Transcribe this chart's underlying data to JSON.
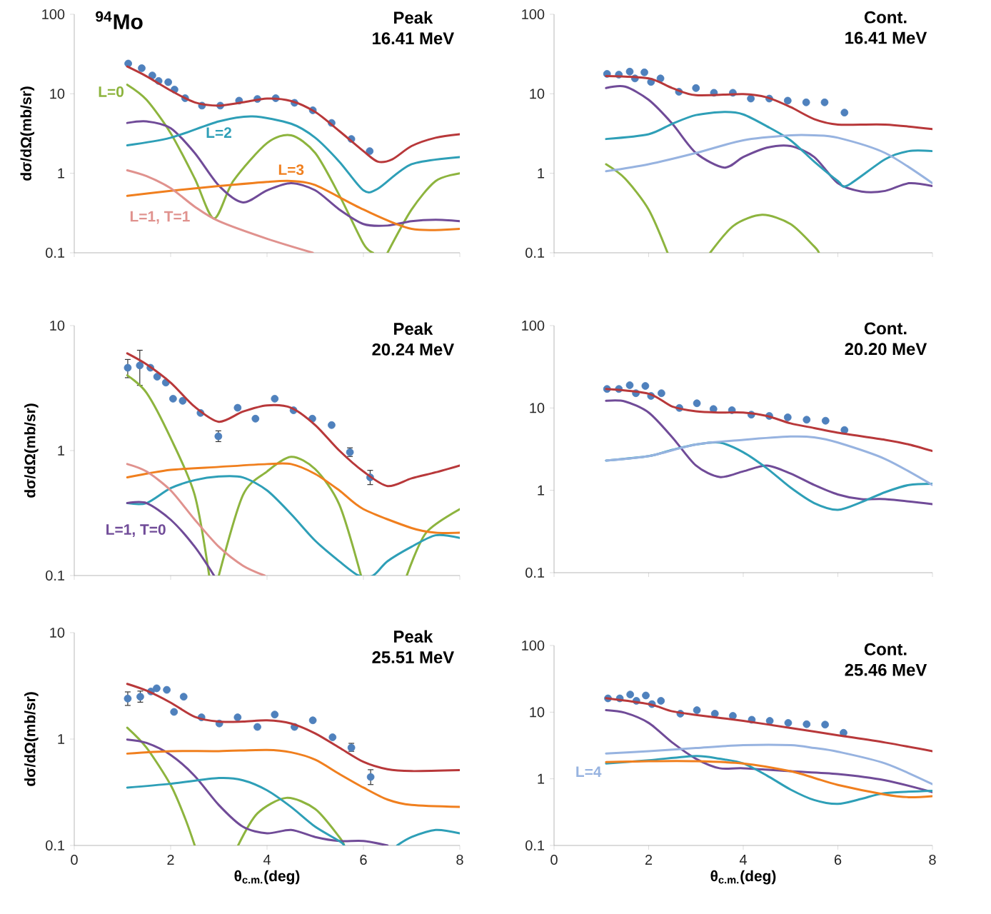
{
  "chart_data": [
    {
      "type": "line",
      "title": "Peak",
      "subtitle": "16.41 MeV",
      "ylabel": "dσ/dΩ(mb/sr)",
      "annotations": [
        "$^{94}$Mo"
      ],
      "log": true,
      "tick_labels": "y",
      "xlim": [
        0,
        8
      ],
      "xticks": [
        0,
        2,
        4,
        6,
        8
      ],
      "ylim": [
        0.1,
        100
      ],
      "yticks": [
        0.1,
        1,
        10,
        100
      ],
      "series": [
        {
          "type": "scatter",
          "marker": "circle",
          "color": "#4f81bd",
          "x": [
            1.12,
            1.4,
            1.62,
            1.75,
            1.95,
            2.08,
            2.3,
            2.65,
            3.03,
            3.42,
            3.8,
            4.18,
            4.57,
            4.95,
            5.34,
            5.75,
            6.13
          ],
          "values": [
            24,
            21,
            17,
            14.5,
            14,
            11.3,
            8.8,
            7.1,
            7.1,
            8.2,
            8.6,
            8.8,
            7.7,
            6.2,
            4.3,
            2.7,
            1.9
          ]
        },
        {
          "color": "#b8383a",
          "x": [
            1.1,
            1.5,
            2,
            2.5,
            3,
            3.5,
            4,
            4.5,
            5,
            5.5,
            6,
            6.3,
            6.6,
            7,
            7.5,
            8
          ],
          "values": [
            22,
            16.6,
            11,
            7.8,
            7.1,
            7.8,
            8.7,
            8.1,
            5.9,
            3.4,
            1.9,
            1.4,
            1.5,
            2.2,
            2.8,
            3.1
          ]
        },
        {
          "name": "L=0",
          "color": "#8db43e",
          "x": [
            1.1,
            1.5,
            2,
            2.5,
            2.9,
            3.3,
            4,
            4.5,
            5,
            5.5,
            6,
            6.2,
            6.35,
            6.5,
            7,
            7.5,
            8
          ],
          "values": [
            13,
            8.4,
            3.2,
            0.86,
            0.27,
            0.8,
            2.4,
            3.0,
            1.8,
            0.53,
            0.13,
            0.1,
            null,
            0.1,
            0.35,
            0.8,
            1.0
          ]
        },
        {
          "color": "#704b98",
          "x": [
            1.1,
            1.5,
            2,
            2.5,
            3,
            3.5,
            4,
            4.5,
            5,
            5.5,
            6,
            6.5,
            7,
            7.5,
            8
          ],
          "values": [
            4.3,
            4.5,
            3.7,
            1.8,
            0.7,
            0.43,
            0.61,
            0.75,
            0.61,
            0.35,
            0.23,
            0.22,
            0.25,
            0.26,
            0.25
          ]
        },
        {
          "name": "L=2",
          "color": "#2e9fb7",
          "x": [
            1.1,
            2,
            3,
            3.7,
            4.5,
            5,
            5.5,
            6,
            6.3,
            7,
            8
          ],
          "values": [
            2.25,
            2.8,
            4.5,
            5.2,
            4.2,
            2.8,
            1.4,
            0.61,
            0.64,
            1.3,
            1.6
          ]
        },
        {
          "name": "L=3",
          "color": "#f07f1e",
          "x": [
            1.1,
            2,
            3,
            4,
            4.5,
            5,
            6,
            7,
            8
          ],
          "values": [
            0.52,
            0.6,
            0.69,
            0.78,
            0.8,
            0.71,
            0.35,
            0.2,
            0.2
          ]
        },
        {
          "name": "L=1, T=1",
          "color": "#e0928e",
          "x": [
            1.1,
            1.5,
            2,
            2.5,
            3,
            4,
            4.95
          ],
          "values": [
            1.09,
            0.92,
            0.65,
            0.38,
            0.25,
            0.15,
            0.1
          ]
        }
      ]
    },
    {
      "type": "line",
      "title": "Cont.",
      "subtitle": "16.41 MeV",
      "log": true,
      "tick_labels": "y",
      "xlim": [
        0,
        8
      ],
      "xticks": [
        0,
        2,
        4,
        6,
        8
      ],
      "ylim": [
        0.1,
        100
      ],
      "yticks": [
        0.1,
        1,
        10,
        100
      ],
      "series": [
        {
          "type": "scatter",
          "marker": "circle",
          "color": "#4f81bd",
          "x": [
            1.12,
            1.37,
            1.6,
            1.71,
            1.91,
            2.05,
            2.25,
            2.64,
            3.0,
            3.38,
            3.78,
            4.16,
            4.55,
            4.94,
            5.33,
            5.72,
            6.14
          ],
          "values": [
            17.8,
            17.4,
            19,
            15.6,
            18.6,
            14.1,
            15.6,
            10.6,
            11.8,
            10.3,
            10.3,
            8.7,
            8.7,
            8.2,
            7.8,
            7.8,
            5.8
          ]
        },
        {
          "color": "#b8383a",
          "x": [
            1.1,
            2,
            2.5,
            3,
            4,
            4.5,
            5,
            5.5,
            6,
            7,
            8
          ],
          "values": [
            16.7,
            15.6,
            11.8,
            9.6,
            9.9,
            9.0,
            6.8,
            4.8,
            4.1,
            4.1,
            3.6
          ]
        },
        {
          "color": "#8db43e",
          "x": [
            1.1,
            1.5,
            2,
            2.4,
            2.85,
            3.3,
            3.8,
            4.4,
            5,
            5.5,
            5.6
          ],
          "values": [
            1.3,
            0.86,
            0.35,
            0.1,
            null,
            0.1,
            0.22,
            0.3,
            0.23,
            0.12,
            0.1
          ]
        },
        {
          "color": "#704b98",
          "x": [
            1.1,
            1.5,
            2,
            2.5,
            3,
            3.6,
            4,
            4.5,
            5,
            5.5,
            6,
            6.5,
            7,
            7.5,
            8
          ],
          "values": [
            11.8,
            12.3,
            8.4,
            4.2,
            1.8,
            1.18,
            1.6,
            2.1,
            2.2,
            1.6,
            0.75,
            0.59,
            0.6,
            0.75,
            0.69
          ]
        },
        {
          "color": "#2e9fb7",
          "x": [
            1.1,
            2,
            2.5,
            3,
            3.6,
            4,
            4.5,
            5,
            5.5,
            6,
            6.2,
            7,
            7.5,
            8
          ],
          "values": [
            2.7,
            3.1,
            4.2,
            5.4,
            5.9,
            5.5,
            3.9,
            2.6,
            1.4,
            0.8,
            0.7,
            1.5,
            1.9,
            1.9
          ]
        },
        {
          "color": "#97b3e0",
          "x": [
            1.1,
            2,
            3,
            4,
            5,
            5.5,
            6,
            7,
            8
          ],
          "values": [
            1.06,
            1.3,
            1.8,
            2.6,
            3.0,
            3.0,
            2.8,
            1.8,
            0.75
          ]
        }
      ]
    },
    {
      "type": "line",
      "title": "Peak",
      "subtitle": "20.24 MeV",
      "ylabel": "dσ/dΩ(mb/sr)",
      "log": true,
      "tick_labels": "y",
      "xlim": [
        0,
        8
      ],
      "xticks": [
        0,
        2,
        4,
        6,
        8
      ],
      "ylim": [
        0.1,
        10
      ],
      "yticks": [
        0.1,
        1,
        10
      ],
      "series": [
        {
          "type": "scatter",
          "marker": "circle",
          "color": "#4f81bd",
          "x": [
            1.11,
            1.36,
            1.58,
            1.72,
            1.9,
            2.05,
            2.25,
            2.62,
            2.99,
            3.39,
            3.76,
            4.16,
            4.55,
            4.94,
            5.34,
            5.72,
            6.14
          ],
          "values": [
            4.6,
            4.8,
            4.6,
            3.9,
            3.5,
            2.6,
            2.5,
            2.0,
            1.3,
            2.2,
            1.8,
            2.6,
            2.1,
            1.8,
            1.6,
            0.97,
            0.61
          ],
          "errors": [
            [
              3.8,
              5.4
            ],
            [
              3.3,
              6.4
            ],
            null,
            null,
            null,
            null,
            null,
            null,
            [
              1.17,
              1.45
            ],
            null,
            null,
            null,
            null,
            null,
            null,
            [
              0.89,
              1.06
            ],
            [
              0.53,
              0.7
            ]
          ]
        },
        {
          "color": "#b8383a",
          "x": [
            1.1,
            1.5,
            2,
            2.5,
            3,
            3.5,
            4,
            4.5,
            5,
            5.5,
            6,
            6.5,
            7,
            7.5,
            8
          ],
          "values": [
            6.0,
            4.9,
            3.5,
            2.24,
            1.7,
            2.05,
            2.3,
            2.2,
            1.6,
            1.0,
            0.68,
            0.52,
            0.6,
            0.67,
            0.76
          ]
        },
        {
          "color": "#8db43e",
          "x": [
            1.1,
            1.5,
            2,
            2.5,
            2.8,
            2.9,
            3.0,
            3.5,
            4,
            4.5,
            5,
            5.5,
            5.95,
            6.4,
            6.9,
            7.3,
            8
          ],
          "values": [
            4.0,
            2.9,
            1.26,
            0.44,
            0.1,
            null,
            0.1,
            0.44,
            0.68,
            0.89,
            0.71,
            0.37,
            0.1,
            null,
            0.1,
            0.22,
            0.34
          ]
        },
        {
          "color": "#f07f1e",
          "x": [
            1.1,
            2,
            3,
            4,
            4.5,
            5,
            5.5,
            6,
            7,
            7.5,
            8
          ],
          "values": [
            0.61,
            0.7,
            0.74,
            0.78,
            0.78,
            0.65,
            0.48,
            0.34,
            0.24,
            0.22,
            0.22
          ]
        },
        {
          "color": "#2e9fb7",
          "x": [
            1.1,
            1.5,
            2,
            2.5,
            3,
            3.5,
            4,
            4.5,
            5,
            5.5,
            5.9,
            6.2,
            6.5,
            7,
            7.5,
            8
          ],
          "values": [
            0.38,
            0.38,
            0.5,
            0.58,
            0.62,
            0.61,
            0.48,
            0.31,
            0.19,
            0.13,
            0.1,
            0.1,
            0.13,
            0.17,
            0.21,
            0.2
          ]
        },
        {
          "name": "L=1, T=0",
          "color": "#704b98",
          "x": [
            1.1,
            1.5,
            2,
            2.5,
            2.9
          ],
          "values": [
            0.38,
            0.38,
            0.28,
            0.17,
            0.1
          ]
        },
        {
          "color": "#e0928e",
          "x": [
            1.1,
            1.5,
            2,
            2.5,
            3,
            3.5,
            3.95
          ],
          "values": [
            0.78,
            0.68,
            0.48,
            0.28,
            0.17,
            0.12,
            0.1
          ]
        }
      ]
    },
    {
      "type": "line",
      "title": "Cont.",
      "subtitle": "20.20 MeV",
      "log": true,
      "tick_labels": "y",
      "xlim": [
        0,
        8
      ],
      "xticks": [
        0,
        2,
        4,
        6,
        8
      ],
      "ylim": [
        0.1,
        100
      ],
      "yticks": [
        0.1,
        1,
        10,
        100
      ],
      "series": [
        {
          "type": "scatter",
          "marker": "circle",
          "color": "#4f81bd",
          "x": [
            1.12,
            1.37,
            1.6,
            1.73,
            1.93,
            2.05,
            2.27,
            2.65,
            3.02,
            3.37,
            3.76,
            4.17,
            4.55,
            4.94,
            5.34,
            5.74,
            6.14
          ],
          "values": [
            17,
            17,
            18.9,
            15.1,
            18.5,
            14,
            15.1,
            10,
            11.4,
            9.7,
            9.4,
            8.3,
            8.0,
            7.7,
            7.2,
            7.0,
            5.4
          ]
        },
        {
          "color": "#b8383a",
          "x": [
            1.1,
            2,
            2.5,
            3,
            3.5,
            4,
            4.5,
            5,
            5.5,
            6,
            7,
            7.5,
            8
          ],
          "values": [
            17,
            14.9,
            10.4,
            9.1,
            8.8,
            8.8,
            8.0,
            6.5,
            5.7,
            5.0,
            4.1,
            3.6,
            3.0
          ]
        },
        {
          "color": "#704b98",
          "x": [
            1.1,
            1.5,
            2,
            2.5,
            3,
            3.5,
            4,
            4.5,
            5,
            5.5,
            6,
            6.5,
            7,
            8
          ],
          "values": [
            12.2,
            12,
            8.8,
            4.4,
            2.0,
            1.45,
            1.7,
            2.0,
            1.6,
            1.16,
            0.89,
            0.78,
            0.78,
            0.68
          ]
        },
        {
          "color": "#2e9fb7",
          "x": [
            1.1,
            2,
            2.5,
            3,
            3.5,
            4,
            4.5,
            5,
            5.5,
            6,
            6.5,
            7,
            7.5,
            8
          ],
          "values": [
            2.3,
            2.6,
            3.1,
            3.6,
            3.8,
            2.9,
            1.85,
            1.08,
            0.7,
            0.58,
            0.72,
            0.95,
            1.16,
            1.2
          ]
        },
        {
          "color": "#97b3e0",
          "x": [
            1.1,
            2,
            3,
            4,
            5,
            5.5,
            6,
            7,
            8
          ],
          "values": [
            2.3,
            2.6,
            3.6,
            4.1,
            4.5,
            4.4,
            3.8,
            2.4,
            1.16
          ]
        }
      ]
    },
    {
      "type": "line",
      "title": "Peak",
      "subtitle": "25.51 MeV",
      "ylabel": "dσ/dΩ(mb/sr)",
      "xlabel": "θ$_{c.m.}$(deg)",
      "log": true,
      "xlim": [
        0,
        8
      ],
      "xticks": [
        0,
        2,
        4,
        6,
        8
      ],
      "ylim": [
        0.1,
        10
      ],
      "yticks": [
        0.1,
        1,
        10
      ],
      "series": [
        {
          "type": "scatter",
          "marker": "circle",
          "color": "#4f81bd",
          "x": [
            1.11,
            1.37,
            1.59,
            1.71,
            1.92,
            2.07,
            2.27,
            2.64,
            3.01,
            3.39,
            3.8,
            4.16,
            4.57,
            4.95,
            5.36,
            5.75,
            6.15
          ],
          "values": [
            2.4,
            2.5,
            2.8,
            3.0,
            2.9,
            1.8,
            2.5,
            1.6,
            1.4,
            1.6,
            1.3,
            1.7,
            1.3,
            1.5,
            1.04,
            0.83,
            0.44
          ],
          "errors": [
            [
              2.05,
              2.8
            ],
            [
              2.2,
              2.85
            ],
            null,
            null,
            null,
            null,
            null,
            null,
            null,
            null,
            null,
            null,
            null,
            null,
            null,
            [
              0.76,
              0.92
            ],
            [
              0.37,
              0.52
            ]
          ]
        },
        {
          "color": "#b8383a",
          "x": [
            1.1,
            1.5,
            2,
            2.5,
            3,
            3.5,
            4,
            4.5,
            5,
            5.5,
            6,
            6.5,
            7,
            8
          ],
          "values": [
            3.3,
            2.85,
            2.2,
            1.62,
            1.46,
            1.46,
            1.5,
            1.4,
            1.13,
            0.83,
            0.61,
            0.52,
            0.5,
            0.51
          ]
        },
        {
          "color": "#8db43e",
          "x": [
            1.1,
            1.5,
            2,
            2.3,
            2.5,
            2.95,
            3.4,
            3.8,
            4.4,
            5,
            5.5,
            5.6
          ],
          "values": [
            1.28,
            0.83,
            0.37,
            0.18,
            0.1,
            null,
            0.1,
            0.2,
            0.28,
            0.22,
            0.12,
            0.1
          ]
        },
        {
          "color": "#704b98",
          "x": [
            1.1,
            1.5,
            2,
            2.5,
            3,
            3.5,
            4,
            4.5,
            5,
            5.5,
            6,
            6.5
          ],
          "values": [
            0.99,
            0.92,
            0.71,
            0.45,
            0.24,
            0.15,
            0.13,
            0.14,
            0.12,
            0.11,
            0.11,
            0.1
          ]
        },
        {
          "color": "#2e9fb7",
          "x": [
            1.1,
            2,
            3,
            3.5,
            4,
            4.5,
            5,
            5.5,
            5.6,
            6.15,
            6.7,
            7,
            7.5,
            8
          ],
          "values": [
            0.35,
            0.38,
            0.43,
            0.41,
            0.33,
            0.23,
            0.15,
            0.11,
            0.1,
            null,
            0.1,
            0.12,
            0.14,
            0.13
          ]
        },
        {
          "color": "#f07f1e",
          "x": [
            1.1,
            2,
            3,
            4,
            4.5,
            5,
            5.5,
            6,
            6.5,
            7,
            8
          ],
          "values": [
            0.73,
            0.77,
            0.77,
            0.79,
            0.75,
            0.64,
            0.47,
            0.35,
            0.27,
            0.24,
            0.23
          ]
        }
      ]
    },
    {
      "type": "line",
      "title": "Cont.",
      "subtitle": "25.46 MeV",
      "xlabel": "θ$_{c.m.}$(deg)",
      "log": true,
      "xlim": [
        0,
        8
      ],
      "xticks": [
        0,
        2,
        4,
        6,
        8
      ],
      "ylim": [
        0.1,
        100
      ],
      "yticks": [
        0.1,
        1,
        10,
        100
      ],
      "series": [
        {
          "type": "scatter",
          "marker": "circle",
          "color": "#4f81bd",
          "x": [
            1.14,
            1.39,
            1.61,
            1.74,
            1.94,
            2.07,
            2.26,
            2.67,
            3.02,
            3.4,
            3.78,
            4.18,
            4.56,
            4.95,
            5.34,
            5.73,
            6.12
          ],
          "values": [
            16.1,
            16.1,
            18.4,
            14.8,
            17.8,
            13.2,
            14.8,
            9.5,
            10.7,
            9.5,
            8.8,
            7.7,
            7.4,
            6.9,
            6.6,
            6.5,
            4.9
          ]
        },
        {
          "color": "#b8383a",
          "x": [
            1.1,
            2,
            2.5,
            3,
            4,
            5,
            6,
            7,
            8
          ],
          "values": [
            16.2,
            13.2,
            10.3,
            9.1,
            7.4,
            5.8,
            4.5,
            3.5,
            2.6
          ]
        },
        {
          "color": "#704b98",
          "x": [
            1.1,
            1.5,
            2,
            2.5,
            3,
            3.5,
            4,
            5,
            6,
            7,
            8
          ],
          "values": [
            10.7,
            9.8,
            6.9,
            3.5,
            2.0,
            1.44,
            1.44,
            1.3,
            1.18,
            0.95,
            0.63
          ]
        },
        {
          "name": "L=4",
          "color": "#97b3e0",
          "x": [
            1.1,
            2,
            3,
            4,
            5,
            5.5,
            6,
            7,
            8
          ],
          "values": [
            2.4,
            2.6,
            2.9,
            3.2,
            3.2,
            2.9,
            2.55,
            1.7,
            0.83
          ]
        },
        {
          "color": "#2e9fb7",
          "x": [
            1.1,
            2,
            3,
            3.5,
            4,
            4.5,
            5,
            5.5,
            6,
            6.5,
            7,
            8
          ],
          "values": [
            1.7,
            1.9,
            2.2,
            2.0,
            1.7,
            1.12,
            0.69,
            0.48,
            0.42,
            0.5,
            0.61,
            0.66
          ]
        },
        {
          "color": "#f07f1e",
          "x": [
            1.1,
            2,
            3,
            4,
            5,
            5.5,
            6,
            7,
            7.5,
            8
          ],
          "values": [
            1.78,
            1.84,
            1.84,
            1.7,
            1.3,
            1.03,
            0.81,
            0.58,
            0.53,
            0.55
          ]
        }
      ]
    }
  ]
}
